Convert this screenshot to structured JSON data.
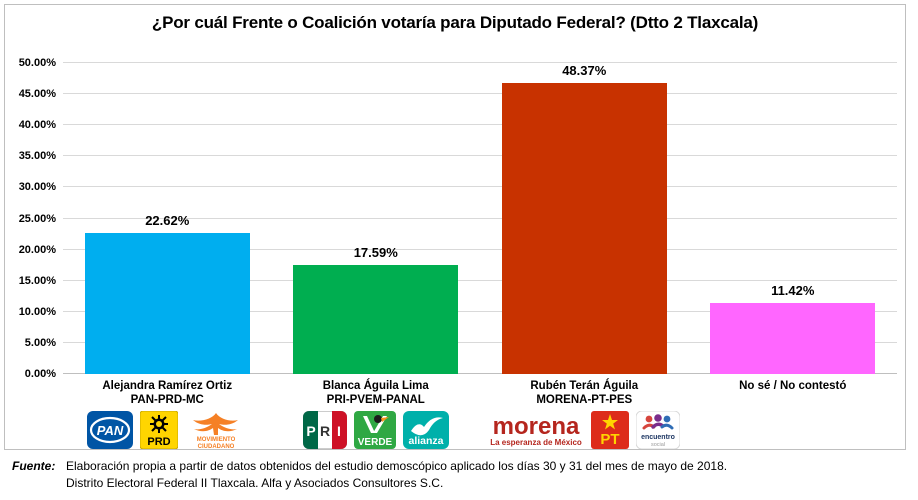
{
  "title": "¿Por cuál Frente o Coalición votaría para Diputado Federal?  (Dtto 2 Tlaxcala)",
  "chart_data": {
    "type": "bar",
    "title": "¿Por cuál Frente o Coalición votaría para Diputado Federal?  (Dtto 2 Tlaxcala)",
    "categories": [
      "Alejandra Ramírez Ortiz",
      "Blanca Águila Lima",
      "Rubén Terán Águila",
      "No sé / No contestó"
    ],
    "coalitions": [
      "PAN-PRD-MC",
      "PRI-PVEM-PANAL",
      "MORENA-PT-PES",
      ""
    ],
    "values": [
      22.62,
      17.59,
      48.37,
      11.42
    ],
    "value_labels": [
      "22.62%",
      "17.59%",
      "48.37%",
      "11.42%"
    ],
    "bar_colors": [
      "#00AEEF",
      "#00AE50",
      "#C83200",
      "#FF66FF"
    ],
    "xlabel": "",
    "ylabel": "",
    "ylim": [
      0,
      50
    ],
    "ytick_step": 5,
    "ytick_labels": [
      "0.00%",
      "5.00%",
      "10.00%",
      "15.00%",
      "20.00%",
      "25.00%",
      "30.00%",
      "35.00%",
      "40.00%",
      "45.00%",
      "50.00%"
    ],
    "grid": true,
    "legend": "none"
  },
  "logos": {
    "pan": "PAN",
    "prd": "PRD",
    "mc_line1": "MOVIMIENTO",
    "mc_line2": "CIUDADANO",
    "pri": "PRI",
    "verde": "VERDE",
    "alianza": "alianza",
    "morena": "morena",
    "morena_tagline": "La esperanza de México",
    "pt": "PT",
    "es_line1": "encuentro",
    "es_line2": "social"
  },
  "footer": {
    "fuente_label": "Fuente:",
    "line1": "Elaboración propia a partir de datos obtenidos del estudio demoscópico aplicado los días 30 y 31 del mes de mayo de 2018.",
    "line2": "Distrito Electoral Federal II Tlaxcala. Alfa y Asociados Consultores S.C."
  }
}
